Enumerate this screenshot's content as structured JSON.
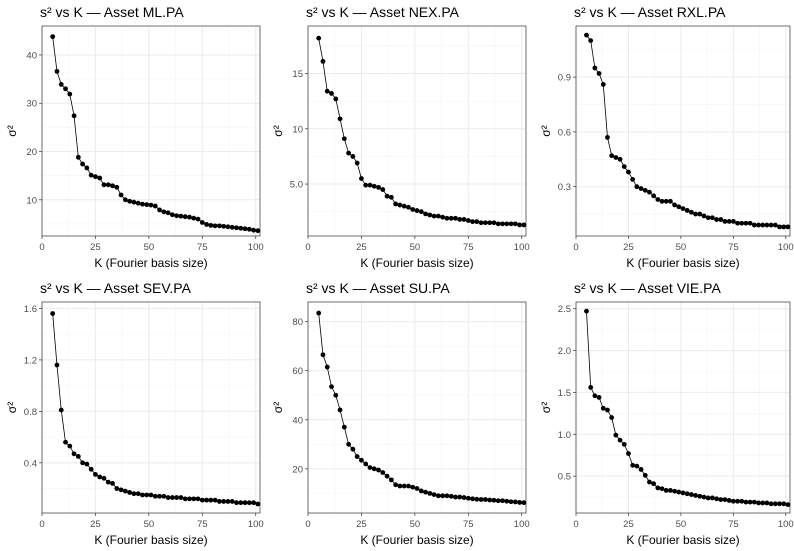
{
  "chart_data": [
    {
      "type": "line",
      "title": "s² vs K — Asset ML.PA",
      "xlabel": "K (Fourier basis size)",
      "ylabel": "σ²",
      "xlim": [
        0,
        102
      ],
      "ylim": [
        2.5,
        46
      ],
      "xticks": [
        0,
        25,
        50,
        75,
        100
      ],
      "yticks": [
        10,
        20,
        30,
        40
      ],
      "x": [
        5,
        7,
        9,
        11,
        13,
        15,
        17,
        19,
        21,
        23,
        25,
        27,
        29,
        31,
        33,
        35,
        37,
        39,
        41,
        43,
        45,
        47,
        49,
        51,
        53,
        55,
        57,
        59,
        61,
        63,
        65,
        67,
        69,
        71,
        73,
        75,
        77,
        79,
        81,
        83,
        85,
        87,
        89,
        91,
        93,
        95,
        97,
        99,
        101
      ],
      "values": [
        43.8,
        36.6,
        33.9,
        33.0,
        31.9,
        27.4,
        18.8,
        17.4,
        16.6,
        15.1,
        14.8,
        14.5,
        13.1,
        13.1,
        12.9,
        12.6,
        11.0,
        10.0,
        9.7,
        9.5,
        9.3,
        9.1,
        9.0,
        8.9,
        8.7,
        7.9,
        7.5,
        7.3,
        6.9,
        6.7,
        6.6,
        6.5,
        6.4,
        6.2,
        6.0,
        5.3,
        4.9,
        4.7,
        4.6,
        4.6,
        4.5,
        4.4,
        4.3,
        4.2,
        4.1,
        4.0,
        3.9,
        3.7,
        3.6
      ],
      "grid": true
    },
    {
      "type": "line",
      "title": "s² vs K — Asset NEX.PA",
      "xlabel": "K (Fourier basis size)",
      "ylabel": "σ²",
      "xlim": [
        0,
        102
      ],
      "ylim": [
        0.3,
        19.3
      ],
      "xticks": [
        0,
        25,
        50,
        75,
        100
      ],
      "yticks": [
        5,
        10,
        15
      ],
      "x": [
        5,
        7,
        9,
        11,
        13,
        15,
        17,
        19,
        21,
        23,
        25,
        27,
        29,
        31,
        33,
        35,
        37,
        39,
        41,
        43,
        45,
        47,
        49,
        51,
        53,
        55,
        57,
        59,
        61,
        63,
        65,
        67,
        69,
        71,
        73,
        75,
        77,
        79,
        81,
        83,
        85,
        87,
        89,
        91,
        93,
        95,
        97,
        99,
        101
      ],
      "values": [
        18.2,
        16.1,
        13.4,
        13.2,
        12.7,
        10.9,
        9.1,
        7.8,
        7.5,
        6.9,
        5.5,
        4.9,
        4.9,
        4.8,
        4.7,
        4.5,
        3.9,
        3.8,
        3.2,
        3.1,
        3.0,
        2.9,
        2.7,
        2.6,
        2.5,
        2.3,
        2.2,
        2.1,
        2.1,
        2.0,
        1.9,
        1.9,
        1.9,
        1.8,
        1.8,
        1.7,
        1.6,
        1.6,
        1.5,
        1.5,
        1.5,
        1.5,
        1.4,
        1.4,
        1.4,
        1.4,
        1.4,
        1.3,
        1.3
      ],
      "grid": true
    },
    {
      "type": "line",
      "title": "s² vs K — Asset RXL.PA",
      "xlabel": "K (Fourier basis size)",
      "ylabel": "σ²",
      "xlim": [
        0,
        102
      ],
      "ylim": [
        0.03,
        1.18
      ],
      "xticks": [
        0,
        25,
        50,
        75,
        100
      ],
      "yticks": [
        0.3,
        0.6,
        0.9
      ],
      "x": [
        5,
        7,
        9,
        11,
        13,
        15,
        17,
        19,
        21,
        23,
        25,
        27,
        29,
        31,
        33,
        35,
        37,
        39,
        41,
        43,
        45,
        47,
        49,
        51,
        53,
        55,
        57,
        59,
        61,
        63,
        65,
        67,
        69,
        71,
        73,
        75,
        77,
        79,
        81,
        83,
        85,
        87,
        89,
        91,
        93,
        95,
        97,
        99,
        101
      ],
      "values": [
        1.13,
        1.1,
        0.95,
        0.92,
        0.86,
        0.57,
        0.47,
        0.46,
        0.45,
        0.41,
        0.38,
        0.34,
        0.3,
        0.29,
        0.28,
        0.27,
        0.25,
        0.23,
        0.22,
        0.22,
        0.22,
        0.2,
        0.19,
        0.18,
        0.17,
        0.16,
        0.15,
        0.15,
        0.14,
        0.13,
        0.13,
        0.12,
        0.12,
        0.11,
        0.11,
        0.11,
        0.1,
        0.1,
        0.1,
        0.1,
        0.09,
        0.09,
        0.09,
        0.09,
        0.09,
        0.09,
        0.08,
        0.08,
        0.08
      ],
      "grid": true
    },
    {
      "type": "line",
      "title": "s² vs K — Asset SEV.PA",
      "xlabel": "K (Fourier basis size)",
      "ylabel": "σ²",
      "xlim": [
        0,
        102
      ],
      "ylim": [
        0.01,
        1.65
      ],
      "xticks": [
        0,
        25,
        50,
        75,
        100
      ],
      "yticks": [
        0.4,
        0.8,
        1.2,
        1.6
      ],
      "x": [
        5,
        7,
        9,
        11,
        13,
        15,
        17,
        19,
        21,
        23,
        25,
        27,
        29,
        31,
        33,
        35,
        37,
        39,
        41,
        43,
        45,
        47,
        49,
        51,
        53,
        55,
        57,
        59,
        61,
        63,
        65,
        67,
        69,
        71,
        73,
        75,
        77,
        79,
        81,
        83,
        85,
        87,
        89,
        91,
        93,
        95,
        97,
        99,
        101
      ],
      "values": [
        1.56,
        1.16,
        0.81,
        0.56,
        0.53,
        0.47,
        0.45,
        0.4,
        0.39,
        0.35,
        0.31,
        0.29,
        0.28,
        0.25,
        0.24,
        0.2,
        0.19,
        0.18,
        0.17,
        0.16,
        0.16,
        0.15,
        0.15,
        0.15,
        0.14,
        0.14,
        0.14,
        0.13,
        0.13,
        0.13,
        0.13,
        0.12,
        0.12,
        0.12,
        0.12,
        0.11,
        0.11,
        0.11,
        0.11,
        0.1,
        0.1,
        0.1,
        0.1,
        0.09,
        0.09,
        0.09,
        0.09,
        0.09,
        0.08
      ],
      "grid": true
    },
    {
      "type": "line",
      "title": "s² vs K — Asset SU.PA",
      "xlabel": "K (Fourier basis size)",
      "ylabel": "σ²",
      "xlim": [
        0,
        102
      ],
      "ylim": [
        2,
        88
      ],
      "xticks": [
        0,
        25,
        50,
        75,
        100
      ],
      "yticks": [
        20,
        40,
        60,
        80
      ],
      "x": [
        5,
        7,
        9,
        11,
        13,
        15,
        17,
        19,
        21,
        23,
        25,
        27,
        29,
        31,
        33,
        35,
        37,
        39,
        41,
        43,
        45,
        47,
        49,
        51,
        53,
        55,
        57,
        59,
        61,
        63,
        65,
        67,
        69,
        71,
        73,
        75,
        77,
        79,
        81,
        83,
        85,
        87,
        89,
        91,
        93,
        95,
        97,
        99,
        101
      ],
      "values": [
        83.5,
        66.5,
        61.5,
        53.5,
        50.0,
        44.0,
        37.0,
        30.0,
        28.0,
        25.0,
        23.5,
        22.0,
        20.5,
        20.0,
        19.5,
        18.5,
        17.0,
        15.5,
        13.5,
        13.0,
        13.0,
        13.0,
        12.5,
        12.0,
        11.0,
        10.5,
        10.0,
        9.5,
        9.0,
        9.0,
        9.0,
        8.8,
        8.5,
        8.5,
        8.3,
        8.0,
        7.8,
        7.6,
        7.5,
        7.5,
        7.3,
        7.2,
        7.0,
        7.0,
        6.8,
        6.6,
        6.5,
        6.3,
        6.2
      ],
      "grid": true
    },
    {
      "type": "line",
      "title": "s² vs K — Asset VIE.PA",
      "xlabel": "K (Fourier basis size)",
      "ylabel": "σ²",
      "xlim": [
        0,
        102
      ],
      "ylim": [
        0.06,
        2.58
      ],
      "xticks": [
        0,
        25,
        50,
        75,
        100
      ],
      "yticks": [
        0.5,
        1.0,
        1.5,
        2.0,
        2.5
      ],
      "x": [
        5,
        7,
        9,
        11,
        13,
        15,
        17,
        19,
        21,
        23,
        25,
        27,
        29,
        31,
        33,
        35,
        37,
        39,
        41,
        43,
        45,
        47,
        49,
        51,
        53,
        55,
        57,
        59,
        61,
        63,
        65,
        67,
        69,
        71,
        73,
        75,
        77,
        79,
        81,
        83,
        85,
        87,
        89,
        91,
        93,
        95,
        97,
        99,
        101
      ],
      "values": [
        2.47,
        1.56,
        1.46,
        1.44,
        1.31,
        1.29,
        1.2,
        0.99,
        0.93,
        0.88,
        0.77,
        0.63,
        0.62,
        0.58,
        0.51,
        0.43,
        0.41,
        0.36,
        0.35,
        0.33,
        0.33,
        0.32,
        0.31,
        0.3,
        0.29,
        0.28,
        0.27,
        0.26,
        0.25,
        0.24,
        0.24,
        0.23,
        0.22,
        0.22,
        0.21,
        0.2,
        0.2,
        0.2,
        0.19,
        0.19,
        0.19,
        0.18,
        0.18,
        0.18,
        0.17,
        0.17,
        0.17,
        0.17,
        0.16
      ],
      "grid": true
    }
  ]
}
